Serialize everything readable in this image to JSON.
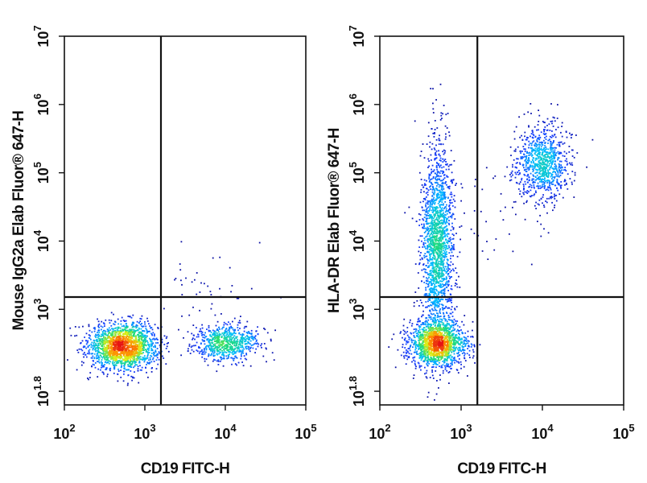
{
  "chart_data": [
    {
      "type": "scatter",
      "title": "",
      "xlabel": "CD19 FITC-H",
      "ylabel": "Mouse IgG2a Elab Fluor® 647-H",
      "x_scale": "log",
      "y_scale": "log",
      "xlim_log10": [
        2,
        5
      ],
      "ylim_log10": [
        1.6,
        7
      ],
      "x_ticks": [
        {
          "base": "10",
          "exp": "2",
          "log10": 2
        },
        {
          "base": "10",
          "exp": "3",
          "log10": 3
        },
        {
          "base": "10",
          "exp": "4",
          "log10": 4
        },
        {
          "base": "10",
          "exp": "5",
          "log10": 5
        }
      ],
      "y_ticks": [
        {
          "base": "10",
          "exp": "1.8",
          "log10": 1.8
        },
        {
          "base": "10",
          "exp": "3",
          "log10": 3
        },
        {
          "base": "10",
          "exp": "4",
          "log10": 4
        },
        {
          "base": "10",
          "exp": "5",
          "log10": 5
        },
        {
          "base": "10",
          "exp": "6",
          "log10": 6
        },
        {
          "base": "10",
          "exp": "7",
          "log10": 7
        }
      ],
      "quadrant_gate_log10": {
        "x": 3.2,
        "y": 3.18
      },
      "clusters": [
        {
          "name": "double-negative",
          "center_log10": [
            2.72,
            2.47
          ],
          "spread_log10": [
            0.22,
            0.17
          ],
          "count": 1800
        },
        {
          "name": "cd19-positive",
          "center_log10": [
            4.0,
            2.52
          ],
          "spread_log10": [
            0.2,
            0.13
          ],
          "count": 700
        },
        {
          "name": "sparse",
          "center_log10": [
            3.8,
            3.3
          ],
          "spread_log10": [
            0.3,
            0.3
          ],
          "count": 40
        }
      ]
    },
    {
      "type": "scatter",
      "title": "",
      "xlabel": "CD19 FITC-H",
      "ylabel": "HLA-DR Elab Fluor® 647-H",
      "x_scale": "log",
      "y_scale": "log",
      "xlim_log10": [
        2,
        5
      ],
      "ylim_log10": [
        1.6,
        7
      ],
      "x_ticks": [
        {
          "base": "10",
          "exp": "2",
          "log10": 2
        },
        {
          "base": "10",
          "exp": "3",
          "log10": 3
        },
        {
          "base": "10",
          "exp": "4",
          "log10": 4
        },
        {
          "base": "10",
          "exp": "5",
          "log10": 5
        }
      ],
      "y_ticks": [
        {
          "base": "10",
          "exp": "1.8",
          "log10": 1.8
        },
        {
          "base": "10",
          "exp": "3",
          "log10": 3
        },
        {
          "base": "10",
          "exp": "4",
          "log10": 4
        },
        {
          "base": "10",
          "exp": "5",
          "log10": 5
        },
        {
          "base": "10",
          "exp": "6",
          "log10": 6
        },
        {
          "base": "10",
          "exp": "7",
          "log10": 7
        }
      ],
      "quadrant_gate_log10": {
        "x": 3.2,
        "y": 3.18
      },
      "clusters": [
        {
          "name": "double-negative",
          "center_log10": [
            2.7,
            2.5
          ],
          "spread_log10": [
            0.18,
            0.17
          ],
          "count": 1500
        },
        {
          "name": "hla-dr-positive-cd19-negative",
          "center_log10": [
            2.7,
            3.9
          ],
          "spread_log10": [
            0.1,
            0.75
          ],
          "count": 1800
        },
        {
          "name": "double-positive",
          "center_log10": [
            4.0,
            5.15
          ],
          "spread_log10": [
            0.17,
            0.28
          ],
          "count": 900
        },
        {
          "name": "sparse",
          "center_log10": [
            3.5,
            4.5
          ],
          "spread_log10": [
            0.35,
            0.5
          ],
          "count": 40
        }
      ]
    }
  ]
}
